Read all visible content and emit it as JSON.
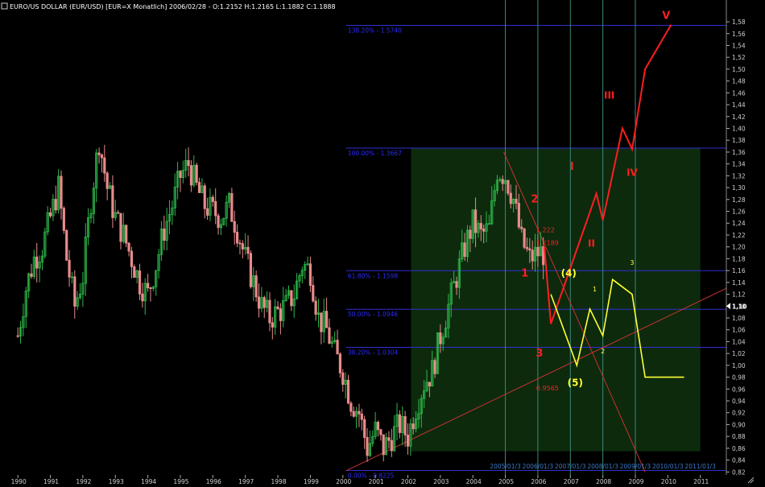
{
  "header": {
    "title": "EURO/US DOLLAR (EUR/USD) [EUR=X  Monatlich] 2006/02/28 - O:1.2152 H:1.2165 L:1.1882 C:1.1888"
  },
  "colors": {
    "background": "#000000",
    "candle_up": "#2db84a",
    "candle_down": "#e88b8b",
    "fib_line": "#3030d0",
    "fib_label": "#2a2aff",
    "red": "#ff1e1e",
    "yellow": "#ffff33",
    "green_zone": "#0d2a0d",
    "vline": "#3a8a7a",
    "axis_text": "#d0d0d0"
  },
  "chart_data": {
    "type": "line",
    "title": "EURO/US DOLLAR (EUR/USD) [EUR=X  Monatlich] 2006/02/28 - O:1.2152 H:1.2165 L:1.1882 C:1.1888",
    "xlabel": "",
    "ylabel": "",
    "xlim": [
      1989.5,
      2011.8
    ],
    "ylim": [
      0.815,
      1.595
    ],
    "x_ticks": [
      "1990",
      "1991",
      "1992",
      "1993",
      "1994",
      "1995",
      "1996",
      "1997",
      "1998",
      "1999",
      "2000",
      "2001",
      "2002",
      "2003",
      "2004",
      "2005",
      "2006",
      "2007",
      "2008",
      "2009",
      "2010",
      "2011"
    ],
    "y_ticks": [
      "0,82",
      "0,84",
      "0,86",
      "0,88",
      "0,90",
      "0,92",
      "0,94",
      "0,96",
      "0,98",
      "1,00",
      "1,02",
      "1,04",
      "1,06",
      "1,08",
      "1,10",
      "1,12",
      "1,14",
      "1,16",
      "1,18",
      "1,20",
      "1,22",
      "1,24",
      "1,26",
      "1,28",
      "1,30",
      "1,32",
      "1,34",
      "1,36",
      "1,38",
      "1,40",
      "1,42",
      "1,44",
      "1,46",
      "1,48",
      "1,50",
      "1,52",
      "1,54",
      "1,56",
      "1,58"
    ],
    "current_price_label": "1,10",
    "date_labels": [
      "2005/01/3",
      "2006/01/3",
      "2007/01/3",
      "2008/01/3",
      "2009/01/3",
      "2010/01/3",
      "2011/01/3"
    ],
    "date_label_x": [
      2005.0,
      2006.0,
      2007.0,
      2008.0,
      2009.0,
      2010.0,
      2011.0
    ],
    "fib_levels": [
      {
        "label": "138.20% - 1.5740",
        "y": 1.574
      },
      {
        "label": "100.00% - 1.3667",
        "y": 1.3667
      },
      {
        "label": "61.80% - 1.1598",
        "y": 1.1598
      },
      {
        "label": "50.00% - 1.0946",
        "y": 1.0946
      },
      {
        "label": "38.20% - 1.0304",
        "y": 1.0304
      },
      {
        "label": "0.00% - 0.8225",
        "y": 0.8225
      }
    ],
    "green_zone": {
      "x": [
        2002.1,
        2011.0
      ],
      "y": [
        0.855,
        1.367
      ]
    },
    "vertical_lines_x": [
      2005.0,
      2006.0,
      2007.0,
      2008.0,
      2009.0
    ],
    "annotations": [
      {
        "text": "1.222",
        "x": 2005.95,
        "y": 1.225,
        "color": "red",
        "size": 8
      },
      {
        "text": "1.2189",
        "x": 2005.95,
        "y": 1.203,
        "color": "red",
        "size": 8
      },
      {
        "text": "0.9565",
        "x": 2005.95,
        "y": 0.958,
        "color": "red",
        "size": 8
      }
    ],
    "red_wave_labels": [
      {
        "text": "1",
        "x": 2005.6,
        "y": 1.15,
        "size": 13
      },
      {
        "text": "2",
        "x": 2005.9,
        "y": 1.275,
        "size": 13
      },
      {
        "text": "3",
        "x": 2006.05,
        "y": 1.015,
        "size": 13
      },
      {
        "text": "I",
        "x": 2007.05,
        "y": 1.33,
        "size": 13
      },
      {
        "text": "II",
        "x": 2007.65,
        "y": 1.2,
        "size": 12
      },
      {
        "text": "III",
        "x": 2008.2,
        "y": 1.45,
        "size": 12
      },
      {
        "text": "IV",
        "x": 2008.9,
        "y": 1.32,
        "size": 12
      },
      {
        "text": "V",
        "x": 2009.95,
        "y": 1.585,
        "size": 13
      }
    ],
    "yellow_wave_labels": [
      {
        "text": "(4)",
        "x": 2006.95,
        "y": 1.15,
        "size": 12
      },
      {
        "text": "(5)",
        "x": 2007.15,
        "y": 0.965,
        "size": 12
      },
      {
        "text": "1",
        "x": 2007.75,
        "y": 1.125,
        "size": 8
      },
      {
        "text": "2",
        "x": 2008.0,
        "y": 1.02,
        "size": 8
      },
      {
        "text": "3",
        "x": 2008.9,
        "y": 1.17,
        "size": 8
      }
    ],
    "red_path": {
      "x": [
        2006.2,
        2006.4,
        2007.8,
        2008.0,
        2008.6,
        2008.9,
        2009.3,
        2010.1
      ],
      "y": [
        1.2,
        1.07,
        1.29,
        1.245,
        1.4,
        1.365,
        1.5,
        1.575
      ]
    },
    "yellow_path": {
      "x": [
        2006.4,
        2007.2,
        2007.6,
        2008.0,
        2008.3,
        2008.9,
        2009.3,
        2010.5
      ],
      "y": [
        1.12,
        1.0,
        1.095,
        1.05,
        1.145,
        1.12,
        0.98,
        0.98
      ]
    },
    "trendlines": [
      {
        "x": [
          2000.1,
          2011.8
        ],
        "y": [
          0.822,
          1.13
        ]
      },
      {
        "x": [
          2004.95,
          2009.3
        ],
        "y": [
          1.36,
          0.82
        ]
      }
    ],
    "price_series": {
      "x": [
        1990.0,
        1990.25,
        1990.5,
        1990.75,
        1991.0,
        1991.25,
        1991.5,
        1991.75,
        1992.0,
        1992.25,
        1992.5,
        1992.75,
        1993.0,
        1993.25,
        1993.5,
        1993.75,
        1994.0,
        1994.25,
        1994.5,
        1994.75,
        1995.0,
        1995.25,
        1995.5,
        1995.75,
        1996.0,
        1996.25,
        1996.5,
        1996.75,
        1997.0,
        1997.25,
        1997.5,
        1997.75,
        1998.0,
        1998.25,
        1998.5,
        1998.75,
        1999.0,
        1999.25,
        1999.5,
        1999.75,
        2000.0,
        2000.25,
        2000.5,
        2000.75,
        2001.0,
        2001.25,
        2001.5,
        2001.75,
        2002.0,
        2002.25,
        2002.5,
        2002.75,
        2003.0,
        2003.25,
        2003.5,
        2003.75,
        2004.0,
        2004.25,
        2004.5,
        2004.75,
        2005.0,
        2005.25,
        2005.5,
        2005.75,
        2006.0,
        2006.17
      ],
      "y": [
        1.05,
        1.13,
        1.18,
        1.2,
        1.25,
        1.3,
        1.18,
        1.1,
        1.15,
        1.28,
        1.38,
        1.3,
        1.25,
        1.22,
        1.18,
        1.14,
        1.12,
        1.17,
        1.23,
        1.27,
        1.32,
        1.34,
        1.3,
        1.27,
        1.26,
        1.25,
        1.27,
        1.23,
        1.18,
        1.14,
        1.1,
        1.08,
        1.09,
        1.1,
        1.12,
        1.17,
        1.16,
        1.08,
        1.06,
        1.02,
        0.99,
        0.94,
        0.92,
        0.86,
        0.89,
        0.86,
        0.88,
        0.9,
        0.88,
        0.93,
        0.97,
        0.99,
        1.05,
        1.1,
        1.15,
        1.2,
        1.24,
        1.22,
        1.23,
        1.33,
        1.32,
        1.28,
        1.21,
        1.18,
        1.19,
        1.19
      ]
    }
  }
}
